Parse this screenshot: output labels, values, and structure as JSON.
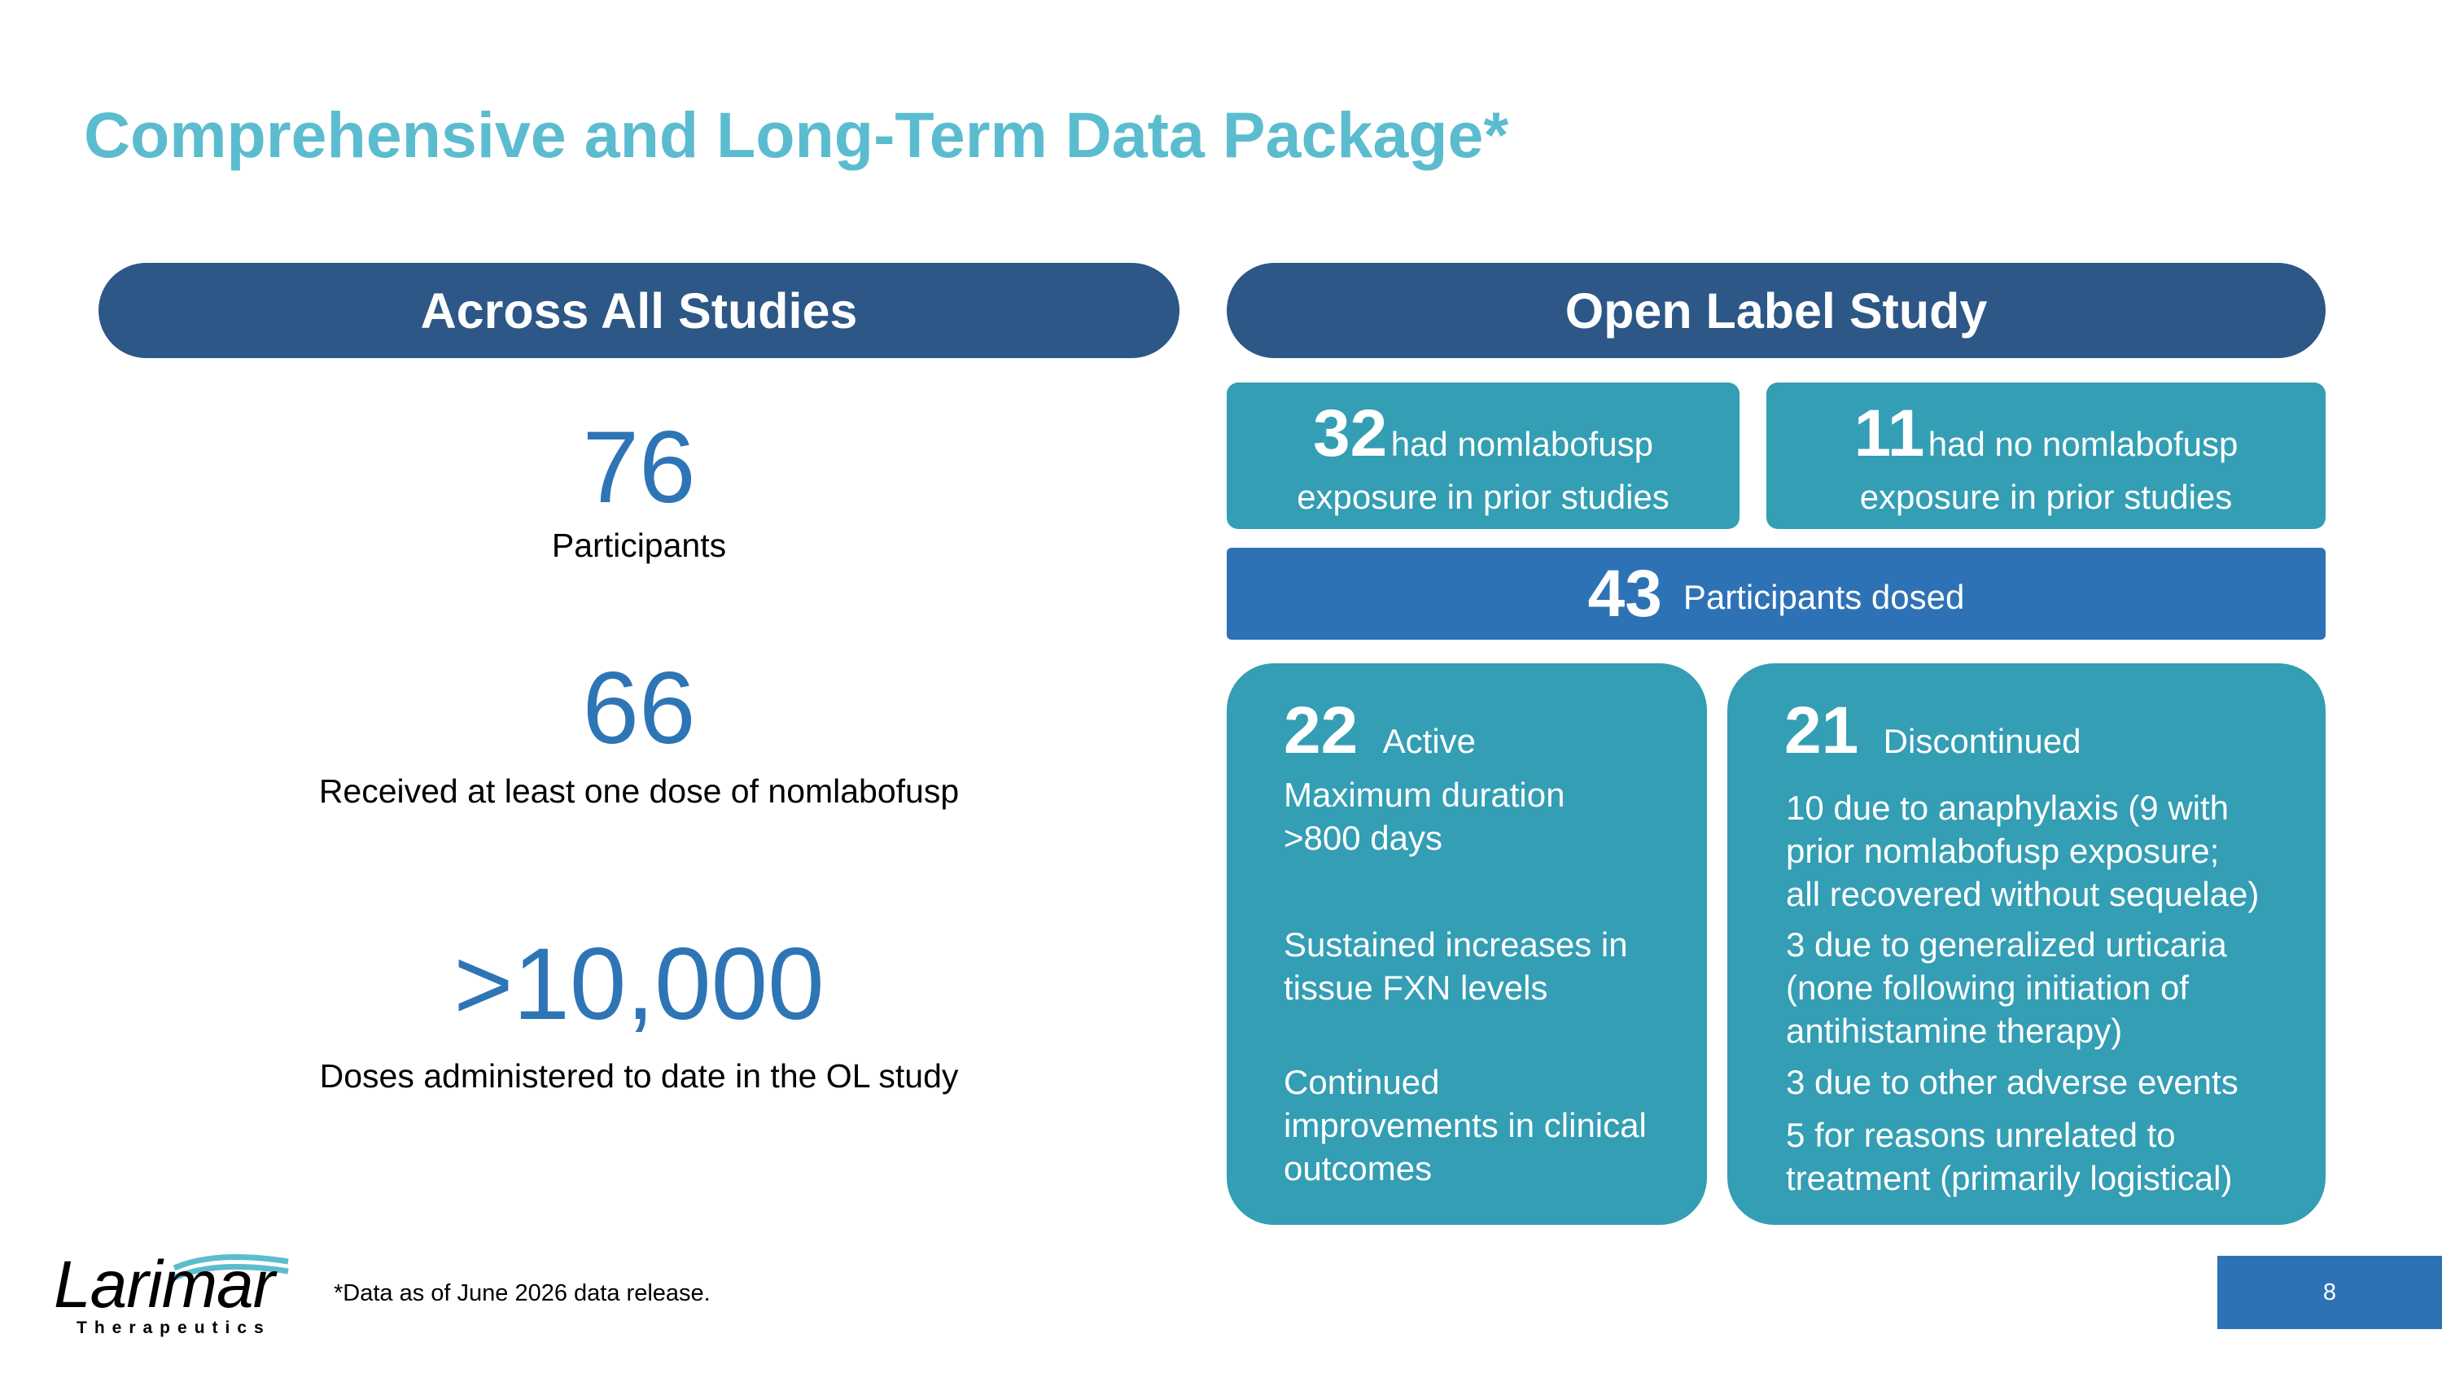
{
  "title": "Comprehensive and Long-Term Data Package*",
  "left_panel": {
    "header": "Across All Studies",
    "stats": [
      {
        "value": "76",
        "label": "Participants"
      },
      {
        "value": "66",
        "label": "Received at least one dose of nomlabofusp"
      },
      {
        "value": ">10,000",
        "label": "Doses administered to date in the OL study"
      }
    ]
  },
  "right_panel": {
    "header": "Open Label Study",
    "prior_exposure": {
      "value": "32",
      "text_line1": "had nomlabofusp",
      "text_line2": "exposure in prior studies"
    },
    "no_prior_exposure": {
      "value": "11",
      "text_line1": "had no nomlabofusp",
      "text_line2": "exposure in prior studies"
    },
    "dosed": {
      "value": "43",
      "text": "Participants dosed"
    },
    "active": {
      "value": "22",
      "label": "Active",
      "points": [
        "Maximum duration\n>800 days",
        "Sustained increases in\ntissue FXN levels",
        "Continued\nimprovements in clinical\noutcomes"
      ]
    },
    "discontinued": {
      "value": "21",
      "label": "Discontinued",
      "points": [
        "10 due to anaphylaxis (9 with\nprior nomlabofusp exposure;\nall recovered without sequelae)",
        "3 due to generalized urticaria\n(none following initiation of\nantihistamine therapy)",
        "3 due to other adverse events",
        "5 for reasons unrelated to\ntreatment (primarily logistical)"
      ]
    }
  },
  "footer": {
    "footnote": "*Data as of June 2026 data release.",
    "logo_name": "Larimar",
    "logo_sub": "Therapeutics",
    "page_number": "8"
  },
  "colors": {
    "title": "#5bbccf",
    "header_pill": "#2c5786",
    "teal_box": "#339eb4",
    "blue_bar": "#2e72b6",
    "stat_number": "#2e75b6"
  }
}
